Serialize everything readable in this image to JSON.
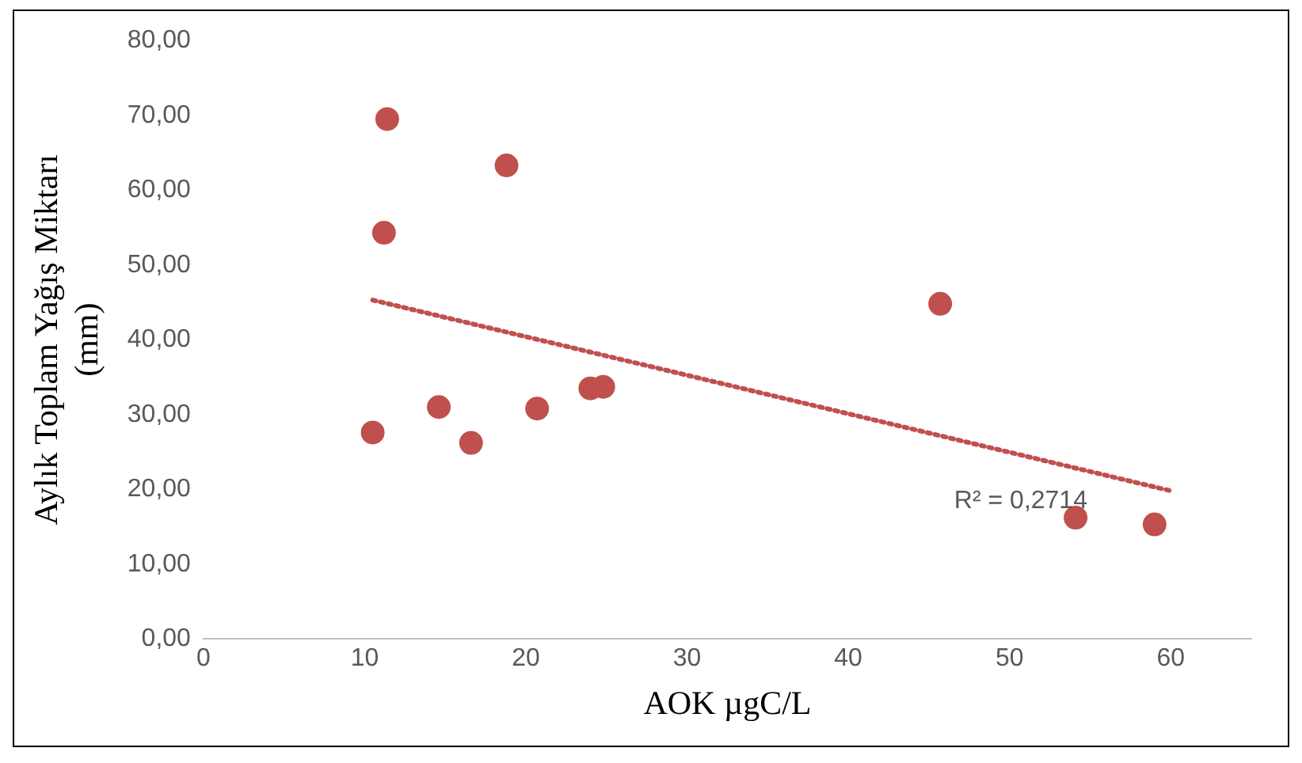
{
  "chart_data": {
    "type": "scatter",
    "xlabel": "AOK µgC/L",
    "ylabel": "Aylık Toplam Yağış Miktarı\n(mm)",
    "xlim": [
      0,
      65
    ],
    "xticks": [
      0,
      10,
      20,
      30,
      40,
      50,
      60
    ],
    "ylim": [
      0,
      80
    ],
    "yticks": [
      {
        "value": 0,
        "label": "0,00"
      },
      {
        "value": 10,
        "label": "10,00"
      },
      {
        "value": 20,
        "label": "20,00"
      },
      {
        "value": 30,
        "label": "30,00"
      },
      {
        "value": 40,
        "label": "40,00"
      },
      {
        "value": 50,
        "label": "50,00"
      },
      {
        "value": 60,
        "label": "60,00"
      },
      {
        "value": 70,
        "label": "70,00"
      },
      {
        "value": 80,
        "label": "80,00"
      }
    ],
    "grid": false,
    "legend": false,
    "series": [
      {
        "marker": "circle",
        "color": "#c0504d",
        "x": [
          10.5,
          11.4,
          11.2,
          14.6,
          16.6,
          18.8,
          20.7,
          24.0,
          24.8,
          45.7,
          54.1,
          59.0
        ],
        "values": [
          27.6,
          69.5,
          54.3,
          31.0,
          26.2,
          63.3,
          30.8,
          33.5,
          33.7,
          44.8,
          16.2,
          15.3
        ]
      },
      {
        "type": "line",
        "color": "#c0504d",
        "line_style": "dotted",
        "x": [
          10.5,
          60
        ],
        "values": [
          45.3,
          19.8
        ]
      }
    ],
    "annotations": [
      "R² = 0,2714"
    ]
  }
}
